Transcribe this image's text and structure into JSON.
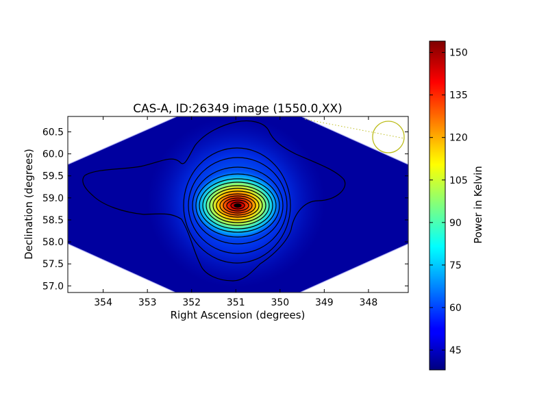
{
  "chart_data": {
    "type": "heatmap",
    "title": "CAS-A, ID:26349 image (1550.0,XX)",
    "xlabel": "Right Ascension (degrees)",
    "ylabel": "Declination (degrees)",
    "xlim": [
      354.8,
      347.1
    ],
    "ylim": [
      56.85,
      60.85
    ],
    "x_ticks": [
      354,
      353,
      352,
      351,
      350,
      349,
      348
    ],
    "x_tick_labels": [
      "354",
      "353",
      "352",
      "351",
      "350",
      "349",
      "348"
    ],
    "y_ticks": [
      57.0,
      57.5,
      58.0,
      58.5,
      59.0,
      59.5,
      60.0,
      60.5
    ],
    "y_tick_labels": [
      "57.0",
      "57.5",
      "58.0",
      "58.5",
      "59.0",
      "59.5",
      "60.0",
      "60.5"
    ],
    "colorbar": {
      "label": "Power in Kelvin",
      "range": [
        38,
        154
      ],
      "ticks": [
        45,
        60,
        75,
        90,
        105,
        120,
        135,
        150
      ],
      "tick_labels": [
        "45",
        "60",
        "75",
        "90",
        "105",
        "120",
        "135",
        "150"
      ],
      "colormap": "jet"
    },
    "source_peak": {
      "ra": 350.85,
      "dec": 58.82,
      "value": 153
    },
    "background_value": 40,
    "beam_marker": {
      "ra": 347.45,
      "dec": 60.38,
      "color": "#bcbc1a"
    }
  }
}
